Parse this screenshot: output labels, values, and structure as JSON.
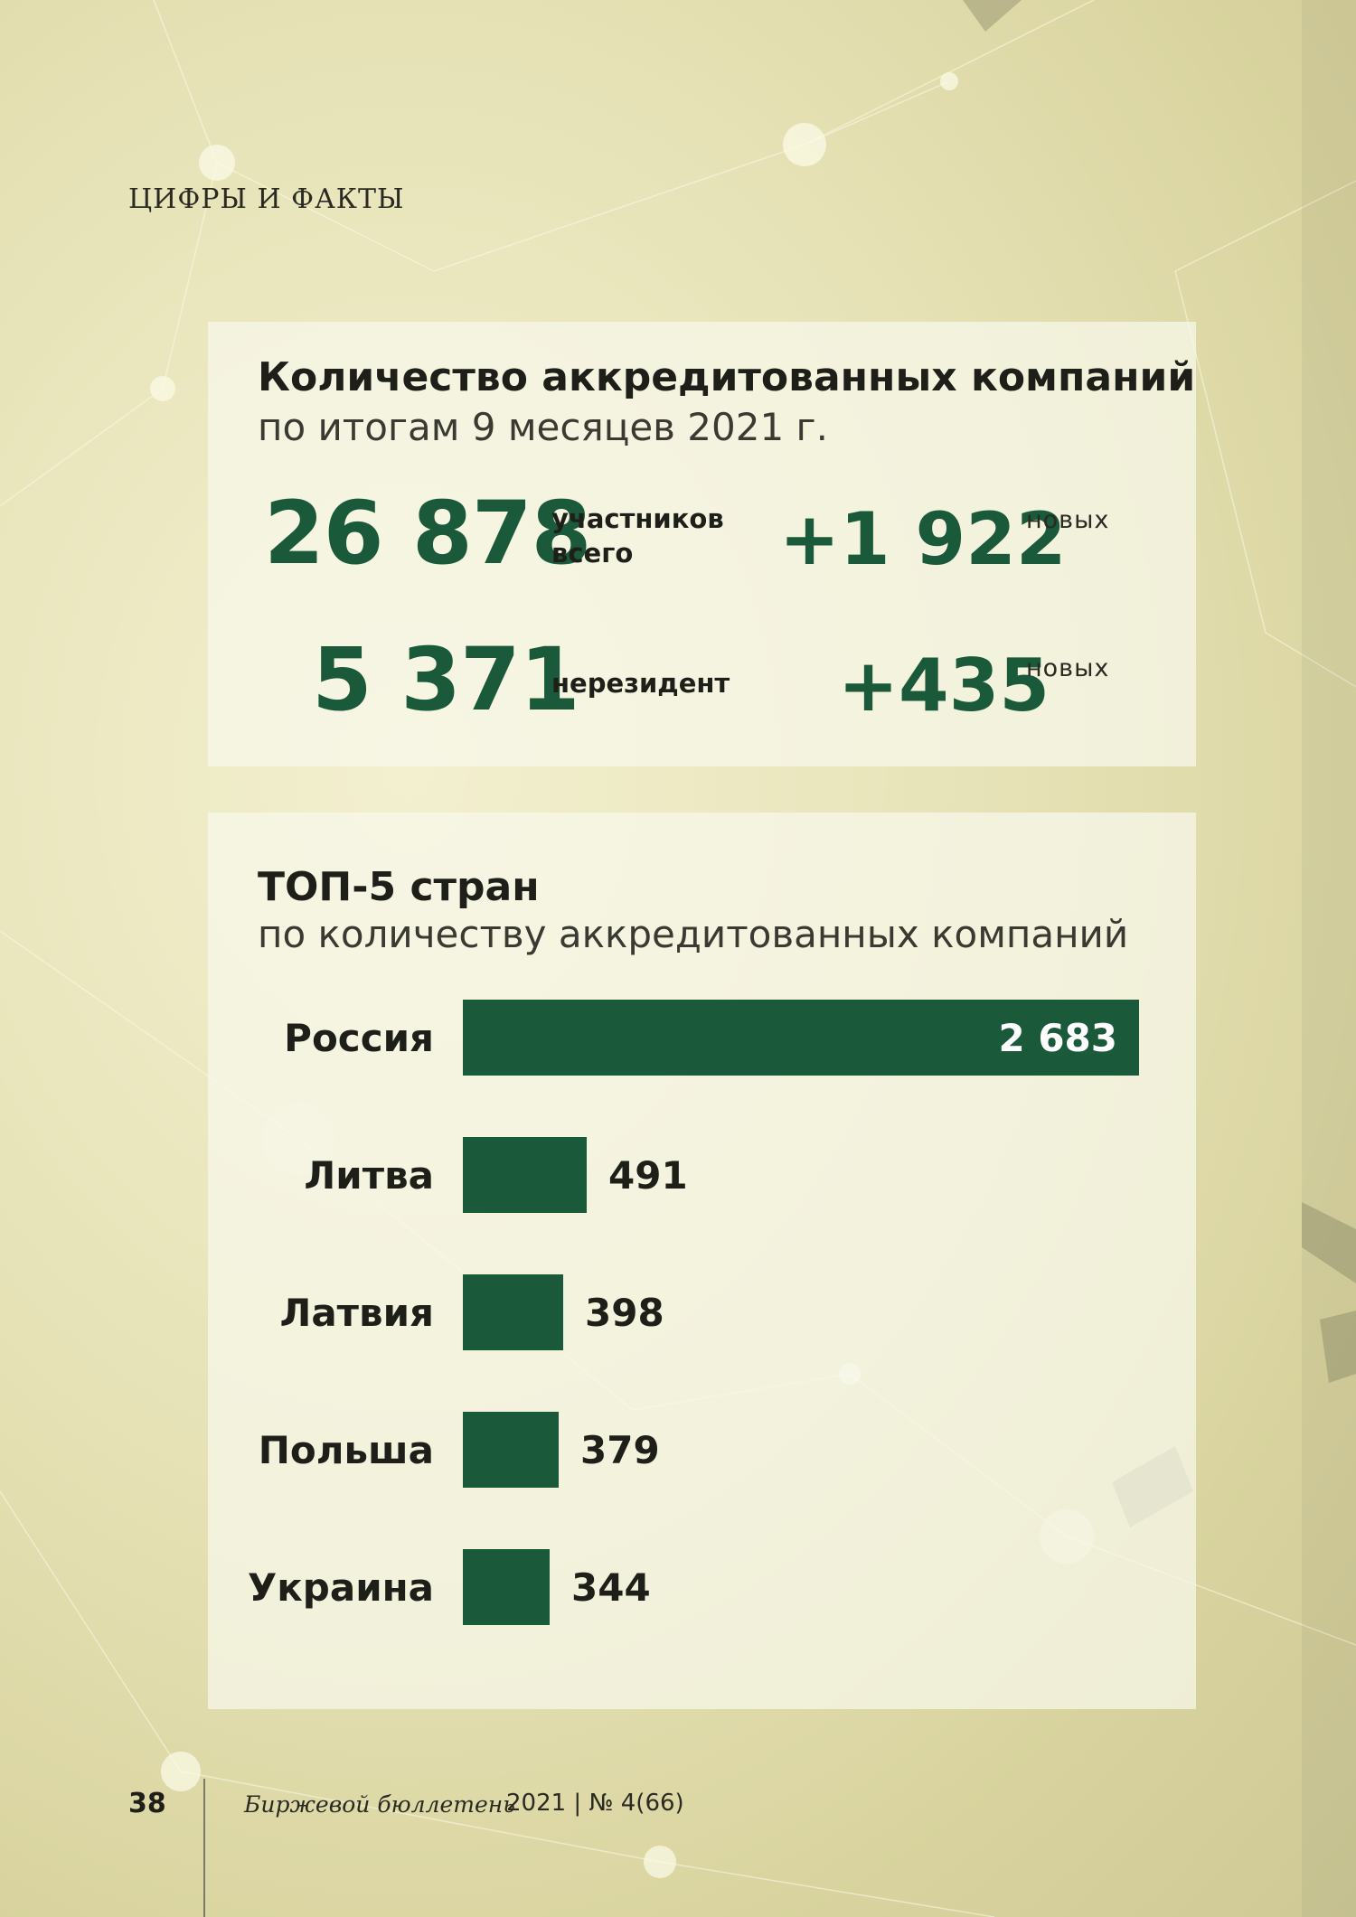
{
  "header": {
    "section": "ЦИФРЫ И ФАКТЫ"
  },
  "stats": {
    "title": "Количество аккредитованных компаний",
    "subtitle": "по итогам 9 месяцев 2021 г.",
    "total_value": "26 878",
    "total_label_line1": "участников",
    "total_label_line2": "всего",
    "total_new_value": "+1 922",
    "total_new_label": "новых",
    "nonresident_value": "5 371",
    "nonresident_label": "нерезидент",
    "nonresident_new_value": "+435",
    "nonresident_new_label": "новых"
  },
  "chart_data": {
    "type": "bar",
    "orientation": "horizontal",
    "title": "ТОП-5 стран",
    "subtitle": "по количеству аккредитованных компаний",
    "categories": [
      "Россия",
      "Литва",
      "Латвия",
      "Польша",
      "Украина"
    ],
    "values": [
      2683,
      491,
      398,
      379,
      344
    ],
    "value_labels": [
      "2 683",
      "491",
      "398",
      "379",
      "344"
    ],
    "bar_color": "#1a5a3a",
    "grid": false
  },
  "footer": {
    "page_number": "38",
    "journal": "Биржевой бюллетень",
    "issue": "2021 | № 4(66)"
  }
}
